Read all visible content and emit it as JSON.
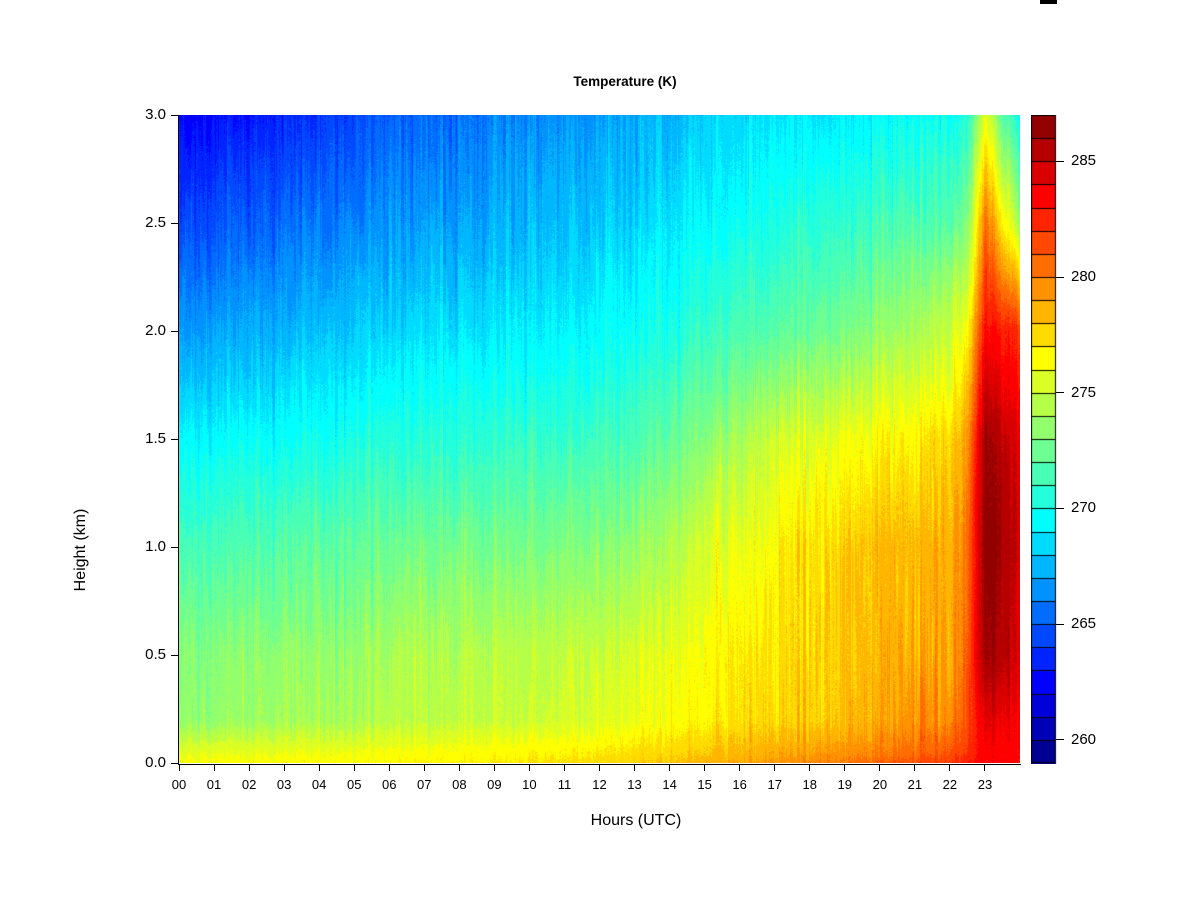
{
  "title": "Temperature (K)",
  "axes": {
    "x": {
      "label": "Hours (UTC)",
      "ticks": [
        "00",
        "01",
        "02",
        "03",
        "04",
        "05",
        "06",
        "07",
        "08",
        "09",
        "10",
        "11",
        "12",
        "13",
        "14",
        "15",
        "16",
        "17",
        "18",
        "19",
        "20",
        "21",
        "22",
        "23"
      ]
    },
    "y": {
      "label": "Height (km)",
      "ticks": [
        "0.0",
        "0.5",
        "1.0",
        "1.5",
        "2.0",
        "2.5",
        "3.0"
      ]
    }
  },
  "chart_data": {
    "type": "heatmap",
    "title": "Temperature (K)",
    "xlabel": "Hours (UTC)",
    "ylabel": "Height (km)",
    "xlim": [
      0,
      24
    ],
    "ylim": [
      0,
      3
    ],
    "grid": false,
    "legend_position": "right-colorbar",
    "colorbar_range": [
      259,
      287
    ],
    "colorbar_ticks": [
      260,
      265,
      270,
      275,
      280,
      285
    ],
    "palette_hex": [
      "#000092",
      "#0000B6",
      "#0000DB",
      "#0000FF",
      "#0024FF",
      "#0049FF",
      "#006DFF",
      "#0092FF",
      "#00B6FF",
      "#00DBFF",
      "#00FFFF",
      "#24FFDB",
      "#49FFB6",
      "#6DFF92",
      "#92FF6D",
      "#B6FF49",
      "#DBFF24",
      "#FFFF00",
      "#FFDB00",
      "#FFB600",
      "#FF9200",
      "#FF6D00",
      "#FF4900",
      "#FF2400",
      "#FF0000",
      "#DB0000",
      "#B60000",
      "#920000"
    ],
    "x_hours": [
      0,
      1,
      2,
      3,
      4,
      5,
      6,
      7,
      8,
      9,
      10,
      11,
      12,
      13,
      14,
      15,
      16,
      17,
      18,
      19,
      20,
      21,
      22,
      22.5,
      23,
      23.5,
      24
    ],
    "y_heights_km": [
      3.0,
      2.5,
      2.0,
      1.5,
      1.0,
      0.5,
      0.2,
      0.05,
      0.0
    ],
    "values_K": [
      [
        262.5,
        262.8,
        263.0,
        263.5,
        264.0,
        264.5,
        265.0,
        265.3,
        265.6,
        266.0,
        266.3,
        266.5,
        266.8,
        267.2,
        267.5,
        268.0,
        268.4,
        268.8,
        269.0,
        269.3,
        269.5,
        269.6,
        269.8,
        270.5,
        276.0,
        272.0,
        270.0
      ],
      [
        264.5,
        264.8,
        265.0,
        265.4,
        265.8,
        266.2,
        266.5,
        266.8,
        267.0,
        267.3,
        267.5,
        267.7,
        268.0,
        268.4,
        268.8,
        269.3,
        269.8,
        270.3,
        270.8,
        271.0,
        271.3,
        271.5,
        271.8,
        273.0,
        280.5,
        277.0,
        274.0
      ],
      [
        266.8,
        267.0,
        267.2,
        267.5,
        267.8,
        268.0,
        268.3,
        268.5,
        268.8,
        269.0,
        269.2,
        269.3,
        269.5,
        269.8,
        270.2,
        270.8,
        271.5,
        272.0,
        272.5,
        273.0,
        273.5,
        274.2,
        274.8,
        276.5,
        283.5,
        283.0,
        282.0
      ],
      [
        269.3,
        269.5,
        269.6,
        269.8,
        270.0,
        270.2,
        270.4,
        270.5,
        270.6,
        270.8,
        270.9,
        271.0,
        271.2,
        271.5,
        272.2,
        273.2,
        274.2,
        275.2,
        275.8,
        276.2,
        276.5,
        276.8,
        277.5,
        279.5,
        286.5,
        285.5,
        284.0
      ],
      [
        271.5,
        271.7,
        271.8,
        271.9,
        272.0,
        272.2,
        272.3,
        272.5,
        272.6,
        272.8,
        272.9,
        273.0,
        273.2,
        273.6,
        274.3,
        275.2,
        275.8,
        276.8,
        277.5,
        278.0,
        278.3,
        278.3,
        278.8,
        280.5,
        287.0,
        286.0,
        284.5
      ],
      [
        273.2,
        273.3,
        273.4,
        273.5,
        273.6,
        273.8,
        274.0,
        274.2,
        274.4,
        274.5,
        274.6,
        274.8,
        275.0,
        275.4,
        275.9,
        276.4,
        276.8,
        277.3,
        277.8,
        278.2,
        278.5,
        278.6,
        279.0,
        281.0,
        286.5,
        285.5,
        284.0
      ],
      [
        273.6,
        273.7,
        273.8,
        273.9,
        274.0,
        274.2,
        274.4,
        274.6,
        274.8,
        274.9,
        275.0,
        275.2,
        275.5,
        275.9,
        276.3,
        276.8,
        277.2,
        277.6,
        278.0,
        278.5,
        278.9,
        279.2,
        279.8,
        281.5,
        284.5,
        284.0,
        283.5
      ],
      [
        275.8,
        275.9,
        275.9,
        276.0,
        276.0,
        276.1,
        276.2,
        276.3,
        276.4,
        276.5,
        276.6,
        276.8,
        277.0,
        277.3,
        277.6,
        278.0,
        278.4,
        278.8,
        279.2,
        279.6,
        280.0,
        280.5,
        281.2,
        282.2,
        283.8,
        283.5,
        283.2
      ],
      [
        276.3,
        276.4,
        276.4,
        276.5,
        276.5,
        276.6,
        276.7,
        276.8,
        276.9,
        277.0,
        277.1,
        277.3,
        277.5,
        277.8,
        278.1,
        278.5,
        278.9,
        279.3,
        279.8,
        280.3,
        280.8,
        281.3,
        282.0,
        282.8,
        283.8,
        283.5,
        283.3
      ]
    ],
    "noise_std_K": 1.1
  },
  "artifact_color": "#000000"
}
